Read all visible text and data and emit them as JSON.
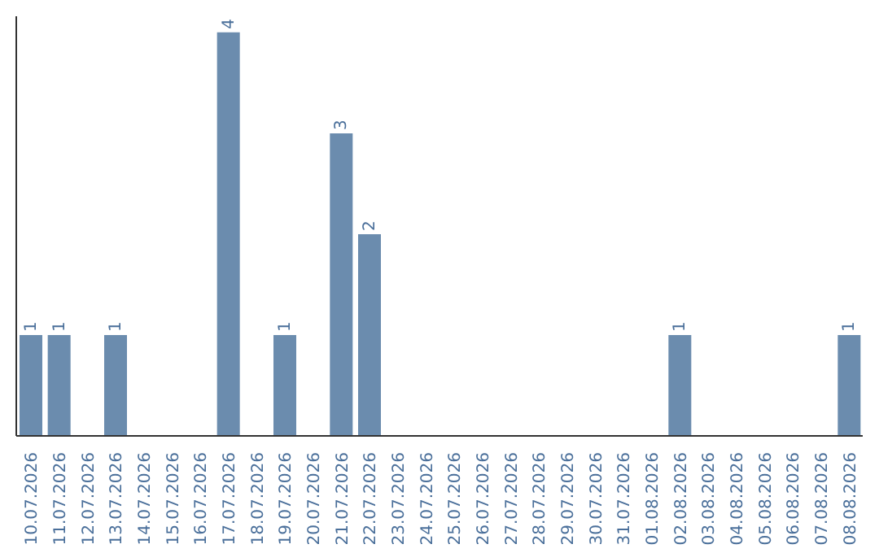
{
  "chart_data": {
    "type": "bar",
    "categories": [
      "10.07.2026",
      "11.07.2026",
      "12.07.2026",
      "13.07.2026",
      "14.07.2026",
      "15.07.2026",
      "16.07.2026",
      "17.07.2026",
      "18.07.2026",
      "19.07.2026",
      "20.07.2026",
      "21.07.2026",
      "22.07.2026",
      "23.07.2026",
      "24.07.2026",
      "25.07.2026",
      "26.07.2026",
      "27.07.2026",
      "28.07.2026",
      "29.07.2026",
      "30.07.2026",
      "31.07.2026",
      "01.08.2026",
      "02.08.2026",
      "03.08.2026",
      "04.08.2026",
      "05.08.2026",
      "06.08.2026",
      "07.08.2026",
      "08.08.2026"
    ],
    "values": [
      1,
      1,
      0,
      1,
      0,
      0,
      0,
      4,
      0,
      1,
      0,
      3,
      2,
      0,
      0,
      0,
      0,
      0,
      0,
      0,
      0,
      0,
      0,
      1,
      0,
      0,
      0,
      0,
      0,
      1
    ],
    "value_labels": [
      "1",
      "1",
      null,
      "1",
      null,
      null,
      null,
      "4",
      null,
      "1",
      null,
      "3",
      "2",
      null,
      null,
      null,
      null,
      null,
      null,
      null,
      null,
      null,
      null,
      "1",
      null,
      null,
      null,
      null,
      null,
      "1"
    ],
    "color": "#6b8cae",
    "tick_labels": "x",
    "grid": false,
    "legend": false
  }
}
